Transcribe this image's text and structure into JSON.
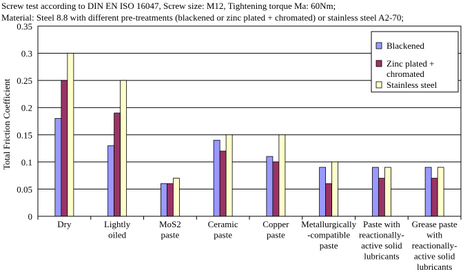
{
  "header": {
    "line1": "Screw test according to DIN EN ISO 16047, Screw size: M12, Tightening torque Ma: 60Nm;",
    "line2": "Material: Steel 8.8 with different pre-treatments (blackened or zinc plated + chromated) or stainless steel A2-70;"
  },
  "chart_data": {
    "type": "bar",
    "title": "",
    "xlabel": "",
    "ylabel": "Total Friction Coefficient",
    "ylim": [
      0,
      0.35
    ],
    "yticks": [
      "0",
      "0.05",
      "0.1",
      "0.15",
      "0.2",
      "0.25",
      "0.3",
      "0.35"
    ],
    "grid": true,
    "legend_position": "right",
    "categories": [
      [
        "Dry"
      ],
      [
        "Lightly",
        "oiled"
      ],
      [
        "MoS2",
        "paste"
      ],
      [
        "Ceramic",
        "paste"
      ],
      [
        "Copper",
        "paste"
      ],
      [
        "Metallurgically",
        "-compatible",
        "paste"
      ],
      [
        "Paste with",
        "reactionally-",
        "active solid",
        "lubricants"
      ],
      [
        "Grease paste",
        "with",
        "reactionally-",
        "active solid",
        "lubricants"
      ]
    ],
    "series": [
      {
        "name": "Blackened",
        "color": "#9999ff",
        "values": [
          0.18,
          0.13,
          0.06,
          0.14,
          0.11,
          0.09,
          0.09,
          0.09
        ]
      },
      {
        "name_lines": [
          "Zinc plated +",
          "chromated"
        ],
        "color": "#993366",
        "values": [
          0.25,
          0.19,
          0.06,
          0.12,
          0.1,
          0.06,
          0.07,
          0.07
        ]
      },
      {
        "name": "Stainless steel",
        "color": "#ffffcc",
        "values": [
          0.3,
          0.25,
          0.07,
          0.15,
          0.15,
          0.1,
          0.09,
          0.09
        ]
      }
    ]
  }
}
